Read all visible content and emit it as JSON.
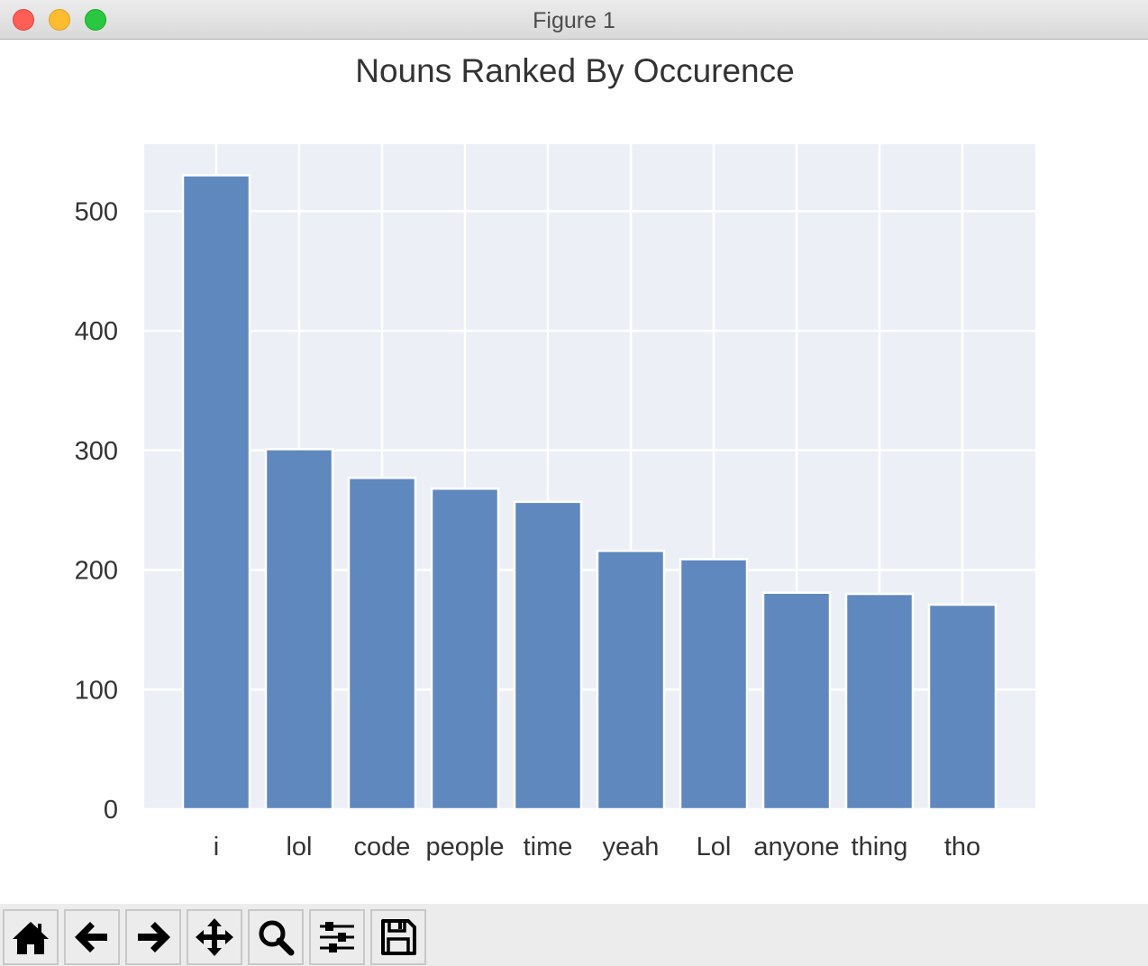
{
  "window": {
    "title": "Figure 1"
  },
  "toolbar": {
    "buttons": [
      {
        "icon": "home-icon"
      },
      {
        "icon": "back-arrow-icon"
      },
      {
        "icon": "forward-arrow-icon"
      },
      {
        "icon": "pan-icon"
      },
      {
        "icon": "zoom-icon"
      },
      {
        "icon": "configure-subplots-icon"
      },
      {
        "icon": "save-icon"
      }
    ]
  },
  "chart_data": {
    "type": "bar",
    "title": "Nouns Ranked By Occurence",
    "xlabel": "",
    "ylabel": "",
    "categories": [
      "i",
      "lol",
      "code",
      "people",
      "time",
      "yeah",
      "Lol",
      "anyone",
      "thing",
      "tho"
    ],
    "values": [
      530,
      301,
      277,
      268,
      257,
      216,
      209,
      181,
      180,
      171
    ],
    "ylim": [
      0,
      556
    ],
    "yticks": [
      0,
      100,
      200,
      300,
      400,
      500
    ],
    "grid": true,
    "legend": "none",
    "colors": {
      "bar": "#5f88be",
      "plot_background": "#eceff5",
      "grid": "#ffffff",
      "text": "#333333"
    }
  }
}
